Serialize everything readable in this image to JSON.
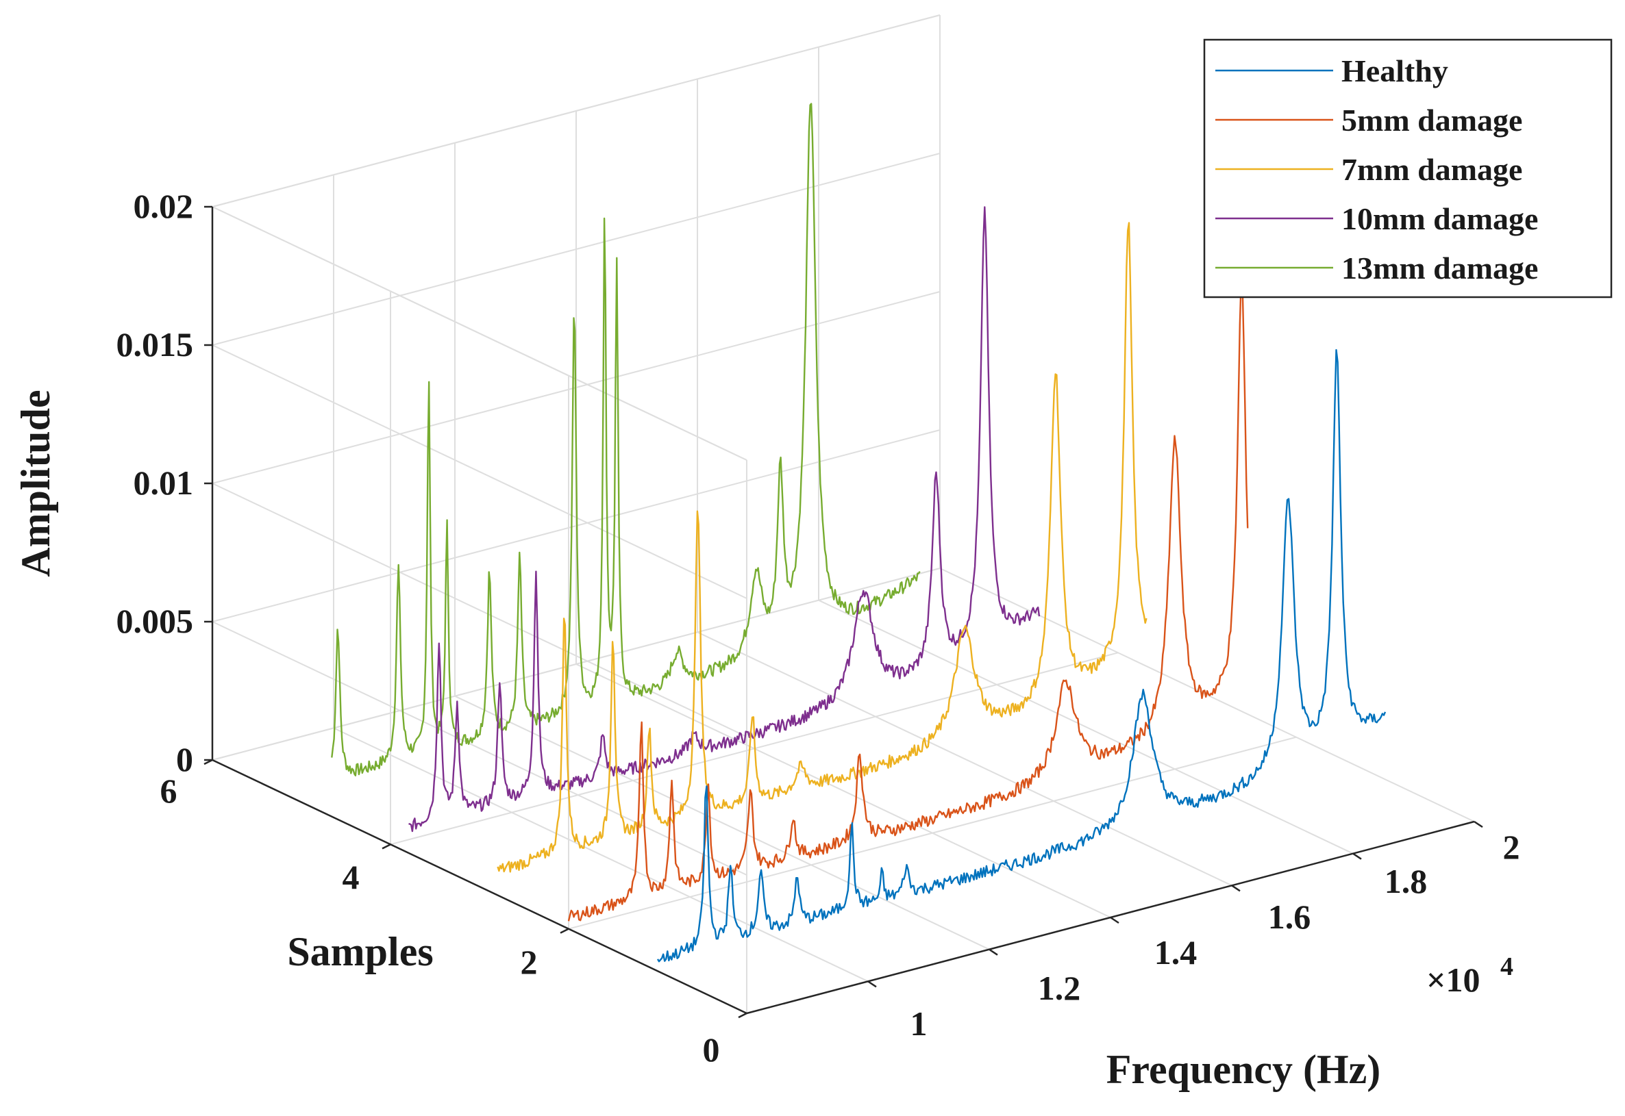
{
  "chart_data": {
    "type": "line",
    "view": "3d-waterfall",
    "xlabel": "Frequency (Hz)",
    "ylabel": "Samples",
    "zlabel": "Amplitude",
    "x_multiplier": "×10",
    "x_exponent": "4",
    "xlim": [
      0.8,
      2.0
    ],
    "ylim": [
      0,
      6
    ],
    "zlim": [
      0,
      0.02
    ],
    "xticks": [
      1,
      1.2,
      1.4,
      1.6,
      1.8,
      2
    ],
    "xtick_labels": [
      "1",
      "1.2",
      "1.4",
      "1.6",
      "1.8",
      "2"
    ],
    "yticks": [
      0,
      2,
      4,
      6
    ],
    "ytick_labels": [
      "0",
      "2",
      "4",
      "6"
    ],
    "zticks": [
      0,
      0.005,
      0.01,
      0.015,
      0.02
    ],
    "ztick_labels": [
      "0",
      "0.005",
      "0.01",
      "0.015",
      "0.02"
    ],
    "grid": true,
    "legend_position": "top-right",
    "series": [
      {
        "name": "Healthy",
        "color": "#0072BD",
        "sample": 1,
        "baseline": 0.0004,
        "end": 0.0073,
        "peaks": [
          [
            0.88,
            0.006,
            0.004
          ],
          [
            0.92,
            0.0028,
            0.004
          ],
          [
            0.97,
            0.0022,
            0.005
          ],
          [
            1.03,
            0.0018,
            0.004
          ],
          [
            1.12,
            0.003,
            0.004
          ],
          [
            1.17,
            0.001,
            0.003
          ],
          [
            1.21,
            0.001,
            0.005
          ],
          [
            1.6,
            0.0048,
            0.02
          ],
          [
            1.84,
            0.0098,
            0.012
          ],
          [
            1.92,
            0.0142,
            0.008
          ]
        ]
      },
      {
        "name": "5mm damage",
        "color": "#D95319",
        "sample": 2,
        "baseline": 0.0004,
        "end": 0.0073,
        "peaks": [
          [
            0.92,
            0.0065,
            0.004
          ],
          [
            0.97,
            0.004,
            0.004
          ],
          [
            1.03,
            0.0035,
            0.004
          ],
          [
            1.1,
            0.0028,
            0.005
          ],
          [
            1.17,
            0.0015,
            0.005
          ],
          [
            1.28,
            0.002,
            0.008
          ],
          [
            1.28,
            0.0012,
            0.004
          ],
          [
            1.62,
            0.0035,
            0.02
          ],
          [
            1.8,
            0.0105,
            0.012
          ],
          [
            1.91,
            0.015,
            0.008
          ]
        ]
      },
      {
        "name": "7mm damage",
        "color": "#EDB120",
        "sample": 3,
        "baseline": 0.0004,
        "end": 0.0073,
        "peaks": [
          [
            0.94,
            0.0088,
            0.004
          ],
          [
            1.02,
            0.0075,
            0.004
          ],
          [
            1.08,
            0.0038,
            0.004
          ],
          [
            1.16,
            0.0115,
            0.005
          ],
          [
            1.25,
            0.0032,
            0.005
          ],
          [
            1.33,
            0.0008,
            0.01
          ],
          [
            1.6,
            0.004,
            0.02
          ],
          [
            1.75,
            0.012,
            0.01
          ],
          [
            1.87,
            0.016,
            0.008
          ]
        ]
      },
      {
        "name": "10mm damage",
        "color": "#7E2F8E",
        "sample": 4,
        "baseline": 0.0004,
        "end": 0.0073,
        "peaks": [
          [
            0.88,
            0.0065,
            0.004
          ],
          [
            0.91,
            0.004,
            0.004
          ],
          [
            0.98,
            0.0045,
            0.004
          ],
          [
            1.04,
            0.008,
            0.004
          ],
          [
            1.15,
            0.0015,
            0.005
          ],
          [
            1.3,
            0.0006,
            0.01
          ],
          [
            1.58,
            0.004,
            0.02
          ],
          [
            1.7,
            0.007,
            0.008
          ],
          [
            1.78,
            0.0158,
            0.008
          ]
        ]
      },
      {
        "name": "13mm damage",
        "color": "#77AC30",
        "sample": 5,
        "baseline": 0.0005,
        "end": 0.0074,
        "peaks": [
          [
            0.83,
            0.002,
            0.003
          ],
          [
            0.86,
            0.0055,
            0.004
          ],
          [
            0.96,
            0.007,
            0.004
          ],
          [
            1.01,
            0.0135,
            0.003
          ],
          [
            1.04,
            0.008,
            0.003
          ],
          [
            1.11,
            0.006,
            0.004
          ],
          [
            1.16,
            0.0062,
            0.004
          ],
          [
            1.25,
            0.0148,
            0.004
          ],
          [
            1.3,
            0.0175,
            0.003
          ],
          [
            1.32,
            0.0155,
            0.003
          ],
          [
            1.42,
            0.0012,
            0.012
          ],
          [
            1.55,
            0.003,
            0.012
          ],
          [
            1.59,
            0.006,
            0.006
          ],
          [
            1.64,
            0.0195,
            0.01
          ]
        ]
      }
    ]
  }
}
